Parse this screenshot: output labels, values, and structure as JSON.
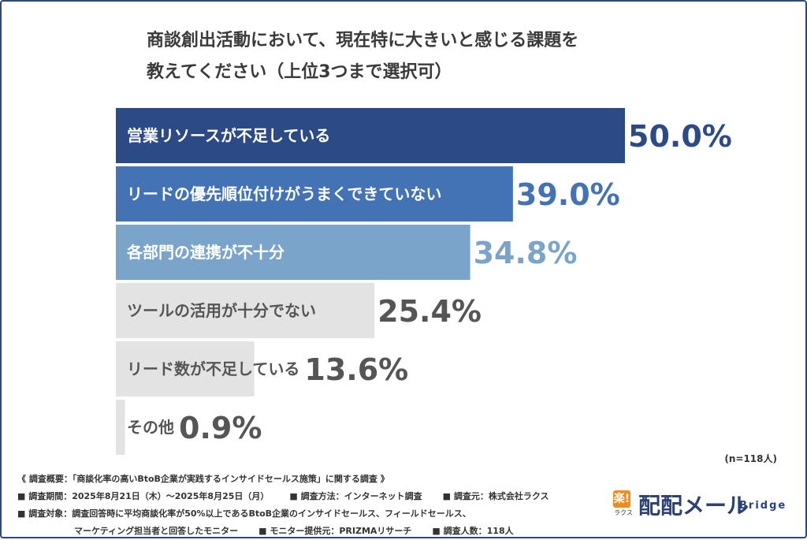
{
  "title": {
    "line1": "商談創出活動において、現在特に大きいと感じる課題を",
    "line2": "教えてください（上位3つまで選択可）"
  },
  "chart_data": {
    "type": "bar",
    "orientation": "horizontal",
    "categories": [
      "営業リソースが不足している",
      "リードの優先順位付けがうまくできていない",
      "各部門の連携が不十分",
      "ツールの活用が十分でない",
      "リード数が不足している",
      "その他"
    ],
    "values": [
      50.0,
      39.0,
      34.8,
      25.4,
      13.6,
      0.9
    ],
    "value_labels": [
      "50.0%",
      "39.0%",
      "34.8%",
      "25.4%",
      "13.6%",
      "0.9%"
    ],
    "bar_colors": [
      "#2c4a85",
      "#4373b5",
      "#7ba4cb",
      "#e3e3e3",
      "#e3e3e3",
      "#e3e3e3"
    ],
    "label_colors": [
      "#ffffff",
      "#ffffff",
      "#ffffff",
      "#555555",
      "#555555",
      "#555555"
    ],
    "value_colors": [
      "#2c4a85",
      "#4373b5",
      "#7ba4cb",
      "#555555",
      "#555555",
      "#555555"
    ],
    "xlim": [
      0,
      50
    ]
  },
  "note": "(n=118人)",
  "footer": {
    "summary": "《 調査概要：「商談化率の高いBtoB企業が実践するインサイドセールス施策」に関する調査 》",
    "period": "■ 調査期間：2025年8月21日（木）〜2025年8月25日（月）",
    "method": "■ 調査方法：インターネット調査",
    "organizer": "■ 調査元：株式会社ラクス",
    "target": "■ 調査対象：調査回答時に平均商談化率が50%以上であるBtoB企業のインサイドセールス、フィールドセールス、",
    "target2": "マーケティング担当者と回答したモニター",
    "provider": "■ モニター提供元：PRIZMAリサーチ",
    "count": "■ 調査人数：118人"
  },
  "logo": {
    "badge": "楽!",
    "badge_sub": "ラクス",
    "main": "配配メール",
    "sub": "Bridge",
    "color": "#2a4277",
    "badge_color": "#f08c1e"
  }
}
